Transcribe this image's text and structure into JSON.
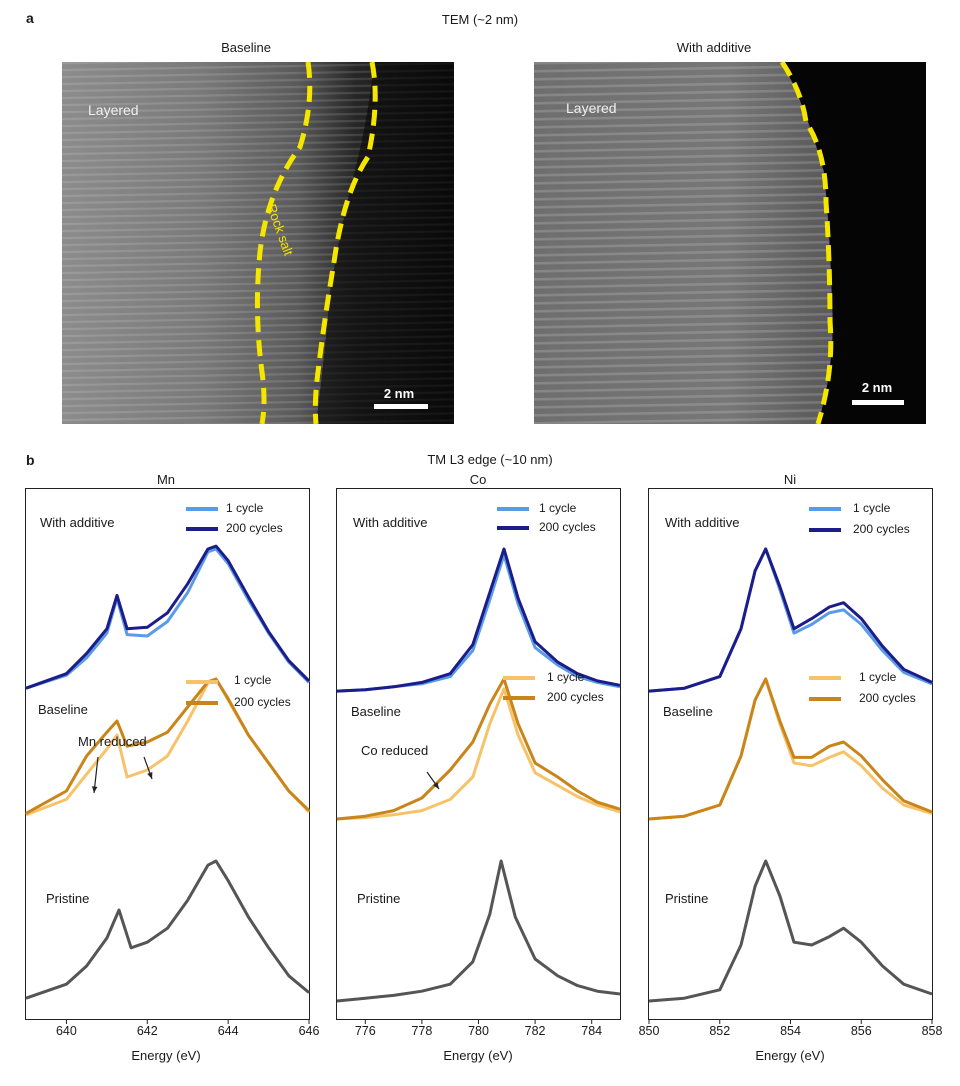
{
  "panel_a": {
    "letter": "a",
    "title": "TEM (~2 nm)",
    "images": [
      {
        "caption": "Baseline",
        "region_label": "Layered",
        "rock_label": "Rock salt",
        "scale": "2 nm"
      },
      {
        "caption": "With additive",
        "region_label": "Layered",
        "scale": "2 nm"
      }
    ],
    "boundary_color": "#f5e600"
  },
  "panel_b": {
    "letter": "b",
    "title": "TM L3 edge (~10 nm)",
    "xlabel": "Energy (eV)",
    "colors": {
      "with_1": "#5a9be6",
      "with_200": "#1c1c8a",
      "base_1": "#f7c36a",
      "base_200": "#c9851a",
      "pristine": "#555555"
    }
  },
  "chart_data": [
    {
      "type": "line",
      "title": "Mn",
      "xlabel": "Energy (eV)",
      "xlim": [
        639,
        646
      ],
      "xticks": [
        640,
        642,
        644,
        646
      ],
      "groups": [
        {
          "label": "With additive",
          "legend": [
            "1 cycle",
            "200 cycles"
          ]
        },
        {
          "label": "Baseline",
          "legend": [
            "1 cycle",
            "200 cycles"
          ],
          "annotation": "Mn reduced"
        },
        {
          "label": "Pristine"
        }
      ],
      "series": [
        {
          "name": "1 cycle",
          "group": "With additive",
          "color": "#5a9be6",
          "x": [
            639,
            640,
            640.5,
            641,
            641.25,
            641.5,
            642,
            642.5,
            643,
            643.5,
            643.7,
            644,
            644.5,
            645,
            645.5,
            646
          ],
          "y": [
            0.04,
            0.13,
            0.25,
            0.42,
            0.66,
            0.41,
            0.4,
            0.5,
            0.7,
            0.98,
            1.0,
            0.9,
            0.65,
            0.42,
            0.22,
            0.08
          ]
        },
        {
          "name": "200 cycles",
          "group": "With additive",
          "color": "#1c1c8a",
          "x": [
            639,
            640,
            640.5,
            641,
            641.25,
            641.5,
            642,
            642.5,
            643,
            643.5,
            643.7,
            644,
            644.5,
            645,
            645.5,
            646
          ],
          "y": [
            0.04,
            0.14,
            0.28,
            0.45,
            0.68,
            0.45,
            0.46,
            0.56,
            0.76,
            1.0,
            1.02,
            0.92,
            0.67,
            0.43,
            0.23,
            0.09
          ]
        },
        {
          "name": "1 cycle",
          "group": "Baseline",
          "color": "#f7c36a",
          "x": [
            639,
            640,
            640.5,
            641,
            641.25,
            641.5,
            642,
            642.5,
            643,
            643.5,
            643.7,
            644,
            644.5,
            645,
            645.5,
            646
          ],
          "y": [
            0.03,
            0.14,
            0.32,
            0.5,
            0.6,
            0.3,
            0.35,
            0.45,
            0.7,
            0.97,
            1.0,
            0.85,
            0.6,
            0.4,
            0.2,
            0.05
          ]
        },
        {
          "name": "200 cycles",
          "group": "Baseline",
          "color": "#c9851a",
          "x": [
            639,
            640,
            640.5,
            641,
            641.25,
            641.5,
            642,
            642.5,
            643,
            643.5,
            643.7,
            644,
            644.5,
            645,
            645.5,
            646
          ],
          "y": [
            0.04,
            0.2,
            0.45,
            0.62,
            0.7,
            0.52,
            0.55,
            0.62,
            0.8,
            0.98,
            1.0,
            0.86,
            0.6,
            0.4,
            0.2,
            0.06
          ]
        },
        {
          "name": "",
          "group": "Pristine",
          "color": "#555555",
          "x": [
            639,
            640,
            640.5,
            641,
            641.3,
            641.6,
            642,
            642.5,
            643,
            643.5,
            643.7,
            644,
            644.5,
            645,
            645.5,
            646
          ],
          "y": [
            0.02,
            0.12,
            0.25,
            0.45,
            0.65,
            0.38,
            0.42,
            0.52,
            0.72,
            0.97,
            1.0,
            0.86,
            0.6,
            0.38,
            0.18,
            0.06
          ]
        }
      ]
    },
    {
      "type": "line",
      "title": "Co",
      "xlabel": "Energy (eV)",
      "xlim": [
        775,
        785
      ],
      "xticks": [
        776,
        778,
        780,
        782,
        784
      ],
      "groups": [
        {
          "label": "With additive",
          "legend": [
            "1 cycle",
            "200 cycles"
          ]
        },
        {
          "label": "Baseline",
          "legend": [
            "1 cycle",
            "200 cycles"
          ],
          "annotation": "Co reduced"
        },
        {
          "label": "Pristine"
        }
      ],
      "series": [
        {
          "name": "1 cycle",
          "group": "With additive",
          "color": "#5a9be6",
          "x": [
            775,
            776,
            777,
            778,
            779,
            779.8,
            780.4,
            780.9,
            781.4,
            782,
            782.8,
            783.5,
            784.2,
            785
          ],
          "y": [
            0.02,
            0.03,
            0.05,
            0.07,
            0.12,
            0.3,
            0.65,
            0.96,
            0.62,
            0.32,
            0.2,
            0.12,
            0.08,
            0.05
          ]
        },
        {
          "name": "200 cycles",
          "group": "With additive",
          "color": "#1c1c8a",
          "x": [
            775,
            776,
            777,
            778,
            779,
            779.8,
            780.4,
            780.9,
            781.4,
            782,
            782.8,
            783.5,
            784.2,
            785
          ],
          "y": [
            0.02,
            0.03,
            0.05,
            0.08,
            0.14,
            0.34,
            0.7,
            1.0,
            0.66,
            0.36,
            0.22,
            0.14,
            0.09,
            0.06
          ]
        },
        {
          "name": "1 cycle",
          "group": "Baseline",
          "color": "#f7c36a",
          "x": [
            775,
            776,
            777,
            778,
            779,
            779.8,
            780.4,
            780.9,
            781.4,
            782,
            782.8,
            783.5,
            784.2,
            785
          ],
          "y": [
            0.0,
            0.01,
            0.03,
            0.06,
            0.14,
            0.3,
            0.68,
            0.93,
            0.6,
            0.33,
            0.24,
            0.16,
            0.1,
            0.05
          ]
        },
        {
          "name": "200 cycles",
          "group": "Baseline",
          "color": "#c9851a",
          "x": [
            775,
            776,
            777,
            778,
            779,
            779.8,
            780.4,
            780.9,
            781.4,
            782,
            782.8,
            783.5,
            784.2,
            785
          ],
          "y": [
            0.0,
            0.02,
            0.06,
            0.15,
            0.35,
            0.55,
            0.82,
            1.0,
            0.68,
            0.4,
            0.3,
            0.2,
            0.12,
            0.07
          ]
        },
        {
          "name": "",
          "group": "Pristine",
          "color": "#555555",
          "x": [
            775,
            776,
            777,
            778,
            779,
            779.8,
            780.4,
            780.8,
            781.3,
            782,
            782.8,
            783.5,
            784.2,
            785
          ],
          "y": [
            0.0,
            0.02,
            0.04,
            0.07,
            0.12,
            0.28,
            0.62,
            1.0,
            0.6,
            0.3,
            0.18,
            0.11,
            0.07,
            0.05
          ]
        }
      ]
    },
    {
      "type": "line",
      "title": "Ni",
      "xlabel": "Energy (eV)",
      "xlim": [
        850,
        858
      ],
      "xticks": [
        850,
        852,
        854,
        856,
        858
      ],
      "groups": [
        {
          "label": "With additive",
          "legend": [
            "1 cycle",
            "200 cycles"
          ]
        },
        {
          "label": "Baseline",
          "legend": [
            "1 cycle",
            "200 cycles"
          ]
        },
        {
          "label": "Pristine"
        }
      ],
      "series": [
        {
          "name": "1 cycle",
          "group": "With additive",
          "color": "#5a9be6",
          "x": [
            850,
            851,
            852,
            852.6,
            853,
            853.3,
            853.7,
            854.1,
            854.6,
            855.1,
            855.5,
            856,
            856.6,
            857.2,
            858
          ],
          "y": [
            0.02,
            0.04,
            0.12,
            0.45,
            0.85,
            1.0,
            0.72,
            0.42,
            0.48,
            0.56,
            0.58,
            0.48,
            0.3,
            0.15,
            0.07
          ]
        },
        {
          "name": "200 cycles",
          "group": "With additive",
          "color": "#1c1c8a",
          "x": [
            850,
            851,
            852,
            852.6,
            853,
            853.3,
            853.7,
            854.1,
            854.6,
            855.1,
            855.5,
            856,
            856.6,
            857.2,
            858
          ],
          "y": [
            0.02,
            0.04,
            0.12,
            0.45,
            0.85,
            1.0,
            0.74,
            0.45,
            0.52,
            0.6,
            0.63,
            0.52,
            0.33,
            0.17,
            0.08
          ]
        },
        {
          "name": "1 cycle",
          "group": "Baseline",
          "color": "#f7c36a",
          "x": [
            850,
            851,
            852,
            852.6,
            853,
            853.3,
            853.7,
            854.1,
            854.6,
            855.1,
            855.5,
            856,
            856.6,
            857.2,
            858
          ],
          "y": [
            0.0,
            0.02,
            0.1,
            0.45,
            0.85,
            1.0,
            0.68,
            0.4,
            0.38,
            0.44,
            0.48,
            0.38,
            0.22,
            0.1,
            0.04
          ]
        },
        {
          "name": "200 cycles",
          "group": "Baseline",
          "color": "#c9851a",
          "x": [
            850,
            851,
            852,
            852.6,
            853,
            853.3,
            853.7,
            854.1,
            854.6,
            855.1,
            855.5,
            856,
            856.6,
            857.2,
            858
          ],
          "y": [
            0.0,
            0.02,
            0.1,
            0.45,
            0.85,
            1.0,
            0.7,
            0.44,
            0.44,
            0.52,
            0.55,
            0.45,
            0.28,
            0.13,
            0.05
          ]
        },
        {
          "name": "",
          "group": "Pristine",
          "color": "#555555",
          "x": [
            850,
            851,
            852,
            852.6,
            853,
            853.3,
            853.7,
            854.1,
            854.6,
            855.1,
            855.5,
            856,
            856.6,
            857.2,
            858
          ],
          "y": [
            0.0,
            0.02,
            0.08,
            0.4,
            0.82,
            1.0,
            0.75,
            0.42,
            0.4,
            0.46,
            0.52,
            0.42,
            0.25,
            0.12,
            0.05
          ]
        }
      ]
    }
  ]
}
